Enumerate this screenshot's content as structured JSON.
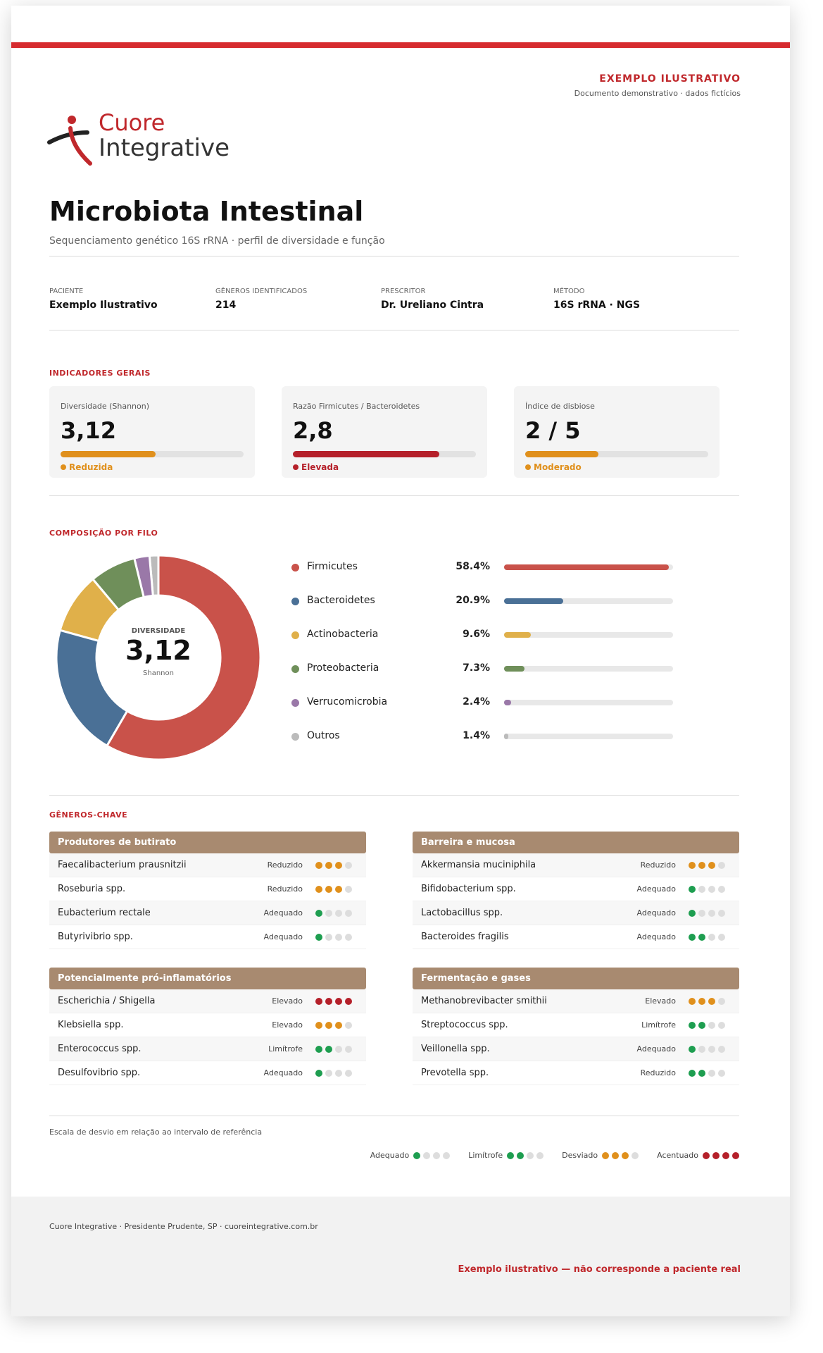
{
  "header": {
    "tag": "EXEMPLO ILUSTRATIVO",
    "note": "Documento demonstrativo · dados fictícios"
  },
  "logo": {
    "line1": "Cuore",
    "line2": "Integrative"
  },
  "title": "Microbiota Intestinal",
  "subtitle": "Sequenciamento genético 16S rRNA · perfil de diversidade e função",
  "meta": [
    {
      "label": "PACIENTE",
      "value": "Exemplo Ilustrativo"
    },
    {
      "label": "GÊNEROS IDENTIFICADOS",
      "value": "214"
    },
    {
      "label": "PRESCRITOR",
      "value": "Dr. Ureliano Cintra"
    },
    {
      "label": "MÉTODO",
      "value": "16S rRNA · NGS"
    }
  ],
  "indicators": {
    "title": "INDICADORES GERAIS",
    "cards": [
      {
        "label": "Diversidade (Shannon)",
        "value": "3,12",
        "gauge": 52,
        "status": "Reduzida",
        "color": "#e0901c"
      },
      {
        "label": "Razão Firmicutes / Bacteroidetes",
        "value": "2,8",
        "gauge": 80,
        "status": "Elevada",
        "color": "#b5202a"
      },
      {
        "label": "Índice de disbiose",
        "value": "2 / 5",
        "gauge": 40,
        "status": "Moderado",
        "color": "#e0901c"
      }
    ]
  },
  "chart_data": {
    "type": "pie",
    "title": "COMPOSIÇÃO POR FILO",
    "center_label": "DIVERSIDADE",
    "center_value": "3,12",
    "center_note": "Shannon",
    "categories": [
      "Firmicutes",
      "Bacteroidetes",
      "Actinobacteria",
      "Proteobacteria",
      "Verrucomicrobia",
      "Outros"
    ],
    "values": [
      58.4,
      20.9,
      9.6,
      7.3,
      2.4,
      1.4
    ],
    "value_labels": [
      "58.4%",
      "20.9%",
      "9.6%",
      "7.3%",
      "2.4%",
      "1.4%"
    ],
    "colors": [
      "#c9524a",
      "#4a7096",
      "#e0b04a",
      "#6f8f5a",
      "#9a78a8",
      "#bbbbbb"
    ],
    "xlim": [
      0,
      60
    ]
  },
  "genera": {
    "title": "GÊNEROS-CHAVE",
    "groups": [
      {
        "title": "Produtores de butirato",
        "rows": [
          {
            "name": "Faecalibacterium prausnitzii",
            "status": "Reduzido",
            "level": 3
          },
          {
            "name": "Roseburia spp.",
            "status": "Reduzido",
            "level": 3
          },
          {
            "name": "Eubacterium rectale",
            "status": "Adequado",
            "level": 1
          },
          {
            "name": "Butyrivibrio spp.",
            "status": "Adequado",
            "level": 1
          }
        ]
      },
      {
        "title": "Barreira e mucosa",
        "rows": [
          {
            "name": "Akkermansia muciniphila",
            "status": "Reduzido",
            "level": 3
          },
          {
            "name": "Bifidobacterium spp.",
            "status": "Adequado",
            "level": 1
          },
          {
            "name": "Lactobacillus spp.",
            "status": "Adequado",
            "level": 1
          },
          {
            "name": "Bacteroides fragilis",
            "status": "Adequado",
            "level": 2
          }
        ]
      },
      {
        "title": "Potencialmente pró-inflamatórios",
        "rows": [
          {
            "name": "Escherichia / Shigella",
            "status": "Elevado",
            "level": 4
          },
          {
            "name": "Klebsiella spp.",
            "status": "Elevado",
            "level": 3
          },
          {
            "name": "Enterococcus spp.",
            "status": "Limítrofe",
            "level": 2
          },
          {
            "name": "Desulfovibrio spp.",
            "status": "Adequado",
            "level": 1
          }
        ]
      },
      {
        "title": "Fermentação e gases",
        "rows": [
          {
            "name": "Methanobrevibacter smithii",
            "status": "Elevado",
            "level": 3
          },
          {
            "name": "Streptococcus spp.",
            "status": "Limítrofe",
            "level": 2
          },
          {
            "name": "Veillonella spp.",
            "status": "Adequado",
            "level": 1
          },
          {
            "name": "Prevotella spp.",
            "status": "Reduzido",
            "level": 2
          }
        ]
      }
    ]
  },
  "scale": {
    "note": "Escala de desvio em relação ao intervalo de referência",
    "levels": [
      {
        "label": "Adequado",
        "level": 1,
        "color": "#1e9e50"
      },
      {
        "label": "Limítrofe",
        "level": 2,
        "color": "#1e9e50"
      },
      {
        "label": "Desviado",
        "level": 3,
        "color": "#e0901c"
      },
      {
        "label": "Acentuado",
        "level": 4,
        "color": "#b5202a"
      }
    ]
  },
  "footer": {
    "address": "Cuore Integrative · Presidente Prudente, SP · cuoreintegrative.com.br",
    "disclaimer": "Exemplo ilustrativo — não corresponde a paciente real"
  }
}
